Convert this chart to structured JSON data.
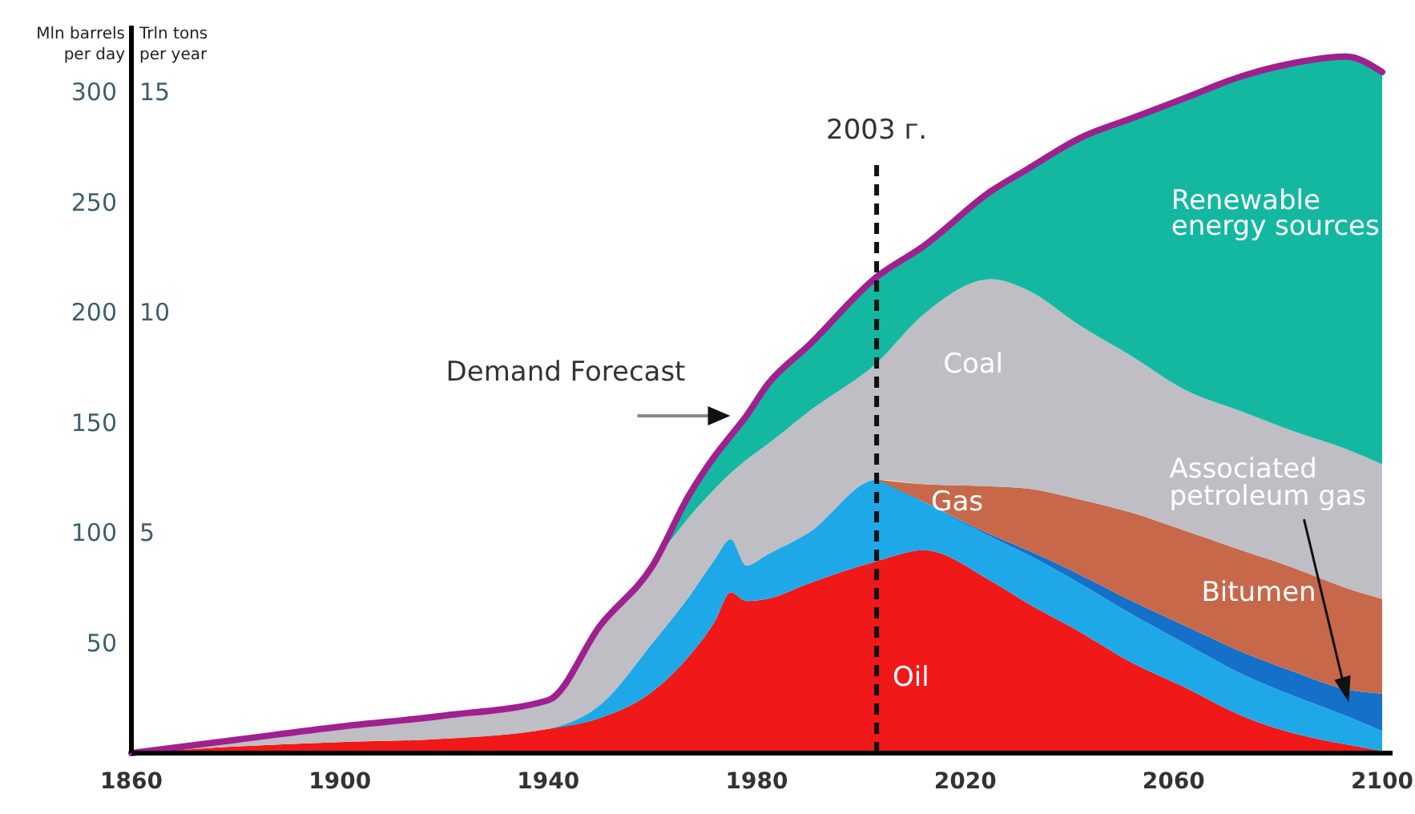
{
  "chart_data": {
    "type": "area",
    "stacked": true,
    "ylabel": "Mln barrels per day",
    "y2label": "Trln tons per year",
    "x": [
      1860,
      1880,
      1900,
      1920,
      1940,
      1950,
      1960,
      1967,
      1972,
      1975,
      1978,
      1982,
      1990,
      2003,
      2012,
      2025,
      2032,
      2042,
      2052,
      2062,
      2073,
      2083,
      2093,
      2100
    ],
    "xlim": [
      1860,
      2102
    ],
    "xticks": [
      1860,
      1900,
      1940,
      1980,
      2020,
      2060,
      2100
    ],
    "ylim": [
      0,
      330
    ],
    "yticks": [
      50,
      100,
      150,
      200,
      250,
      300
    ],
    "y2lim": [
      0,
      16.5
    ],
    "y2ticks": [
      5,
      10,
      15
    ],
    "grid": false,
    "legend": false,
    "series": [
      {
        "name": "Oil",
        "color": "#f01818",
        "values": [
          0,
          3,
          5,
          6.5,
          11,
          16,
          28,
          44,
          60,
          73,
          69,
          70,
          77,
          87,
          92,
          78,
          68,
          55,
          41,
          30,
          17,
          9,
          4,
          1
        ]
      },
      {
        "name": "Gas",
        "color": "#1ea8e8",
        "values": [
          null,
          null,
          null,
          null,
          0,
          6,
          22,
          27,
          28,
          24,
          16,
          20,
          23,
          37,
          22,
          20,
          22,
          22,
          22,
          20,
          19,
          17,
          13,
          9
        ]
      },
      {
        "name": "Associated petroleum gas",
        "color": "#1470c8",
        "values": [
          null,
          null,
          null,
          null,
          null,
          null,
          null,
          null,
          null,
          null,
          null,
          null,
          null,
          null,
          0,
          1,
          2,
          4,
          6,
          8,
          10,
          11,
          12,
          17
        ]
      },
      {
        "name": "Bitumen",
        "color": "#c8684a",
        "values": [
          null,
          null,
          null,
          null,
          null,
          null,
          null,
          null,
          null,
          null,
          null,
          null,
          null,
          0,
          8,
          22,
          28,
          34,
          40,
          43,
          46,
          47,
          46,
          43
        ]
      },
      {
        "name": "Coal",
        "color": "#bebec4",
        "values": [
          0,
          3,
          7,
          10.5,
          13,
          36,
          35,
          36,
          32,
          30,
          48,
          50,
          55,
          53,
          77,
          94,
          90,
          79,
          71,
          64,
          63,
          62,
          63,
          61
        ]
      },
      {
        "name": "Renewable energy sources",
        "color": "#14b8a0",
        "values": [
          null,
          null,
          null,
          null,
          null,
          null,
          0,
          10,
          15,
          17,
          20,
          27,
          30,
          39,
          31,
          40,
          55,
          85,
          108,
          132,
          152,
          167,
          178,
          178
        ]
      },
      {
        "type": "line",
        "color": "#a0208f",
        "values": [
          0,
          6,
          12,
          17,
          24,
          58,
          85,
          117,
          135,
          144,
          153,
          167,
          185,
          216,
          230,
          255,
          265,
          279,
          288,
          297,
          307,
          313,
          316,
          309
        ]
      }
    ],
    "annotations": [
      {
        "text": "Demand Forecast",
        "x": 1978,
        "y": 153
      }
    ],
    "ref_lines": [
      {
        "axis": "x",
        "value": 2003,
        "label": "2003 г.",
        "color": "#111111",
        "line_style": "dashed"
      }
    ]
  }
}
